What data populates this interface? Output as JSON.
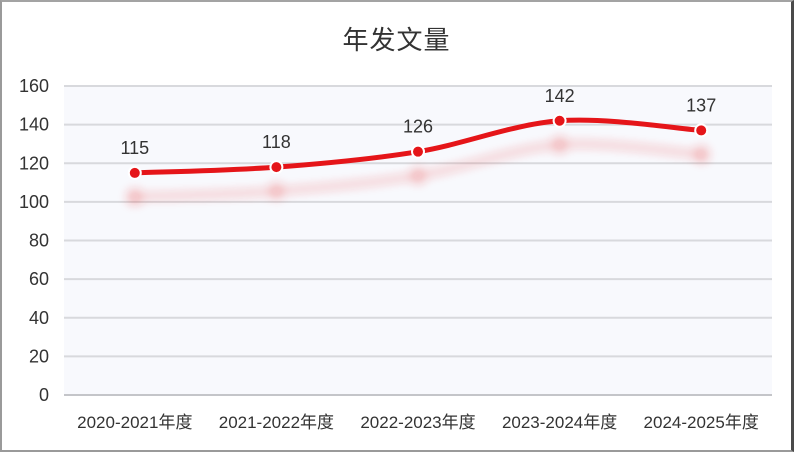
{
  "chart_data": {
    "type": "line",
    "title": "年发文量",
    "xlabel": "",
    "ylabel": "",
    "categories": [
      "2020-2021年度",
      "2021-2022年度",
      "2022-2023年度",
      "2023-2024年度",
      "2024-2025年度"
    ],
    "series": [
      {
        "name": "年发文量",
        "values": [
          115,
          118,
          126,
          142,
          137
        ]
      }
    ],
    "data_labels": [
      "115",
      "118",
      "126",
      "142",
      "137"
    ],
    "y_ticks": [
      0,
      20,
      40,
      60,
      80,
      100,
      120,
      140,
      160
    ],
    "ylim": [
      0,
      160
    ],
    "grid": true,
    "legend_position": "none",
    "smooth": true,
    "style": {
      "line_color": "#e51519",
      "marker_fill": "#e51519",
      "marker_stroke": "#ffffff",
      "label_color": "#333333",
      "grid_color": "#d8d9dd",
      "baseline_color": "#c4c5c9",
      "plot_bg": "#f8f9fd",
      "shadow_opacity": 0.28
    }
  }
}
